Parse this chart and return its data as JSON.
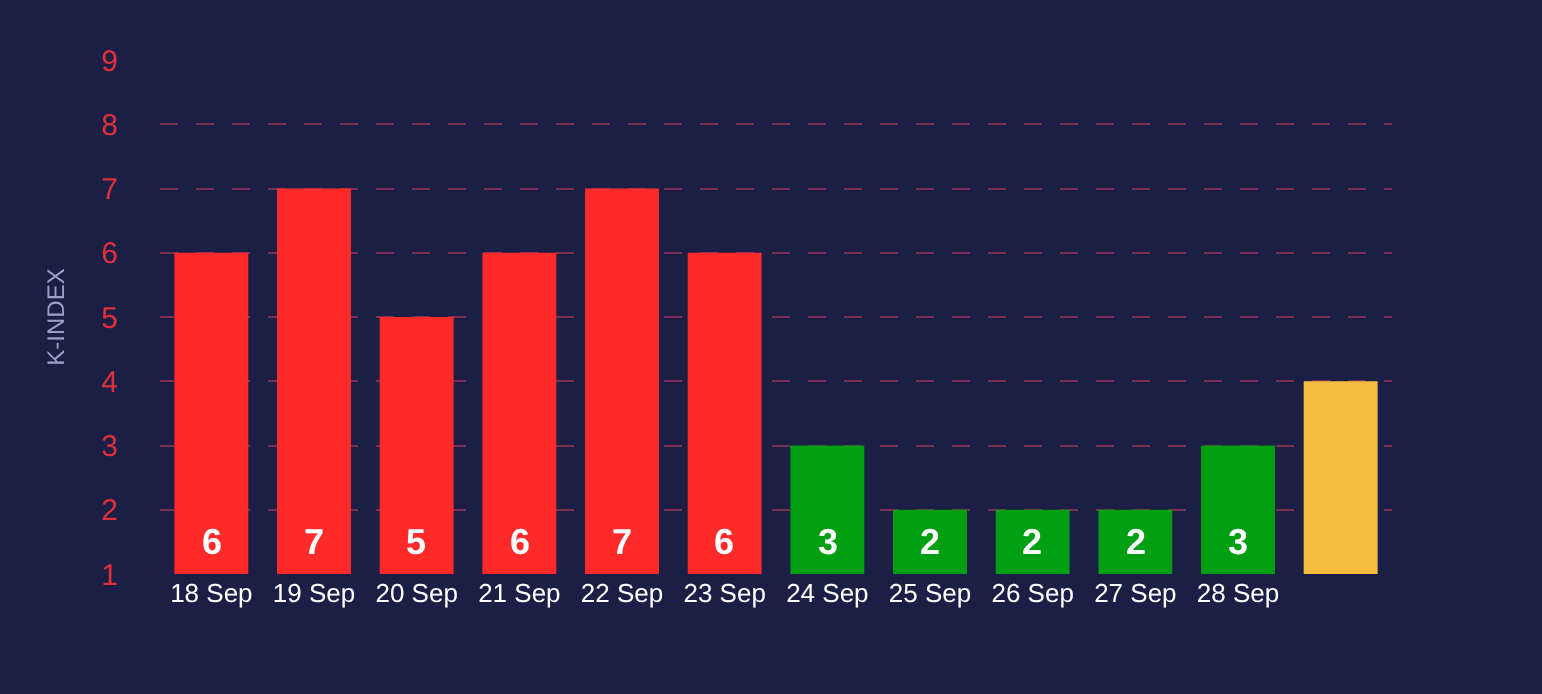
{
  "chart_data": {
    "type": "bar",
    "ylabel": "K-INDEX",
    "categories": [
      "18 Sep",
      "19 Sep",
      "20 Sep",
      "21 Sep",
      "22 Sep",
      "23 Sep",
      "24 Sep",
      "25 Sep",
      "26 Sep",
      "27 Sep",
      "28 Sep",
      null
    ],
    "values": [
      6,
      7,
      5,
      6,
      7,
      6,
      3,
      2,
      2,
      2,
      3,
      4
    ],
    "colors": [
      "#ff2a2a",
      "#ff2a2a",
      "#ff2a2a",
      "#ff2a2a",
      "#ff2a2a",
      "#ff2a2a",
      "#009e12",
      "#009e12",
      "#009e12",
      "#009e12",
      "#009e12",
      "#f5be41"
    ],
    "value_labels": [
      "6",
      "7",
      "5",
      "6",
      "7",
      "6",
      "3",
      "2",
      "2",
      "2",
      "3",
      null
    ],
    "ylim": [
      1,
      9
    ],
    "yticks": [
      1,
      2,
      3,
      4,
      5,
      6,
      7,
      8,
      9
    ],
    "grid": "y",
    "legend": false
  }
}
